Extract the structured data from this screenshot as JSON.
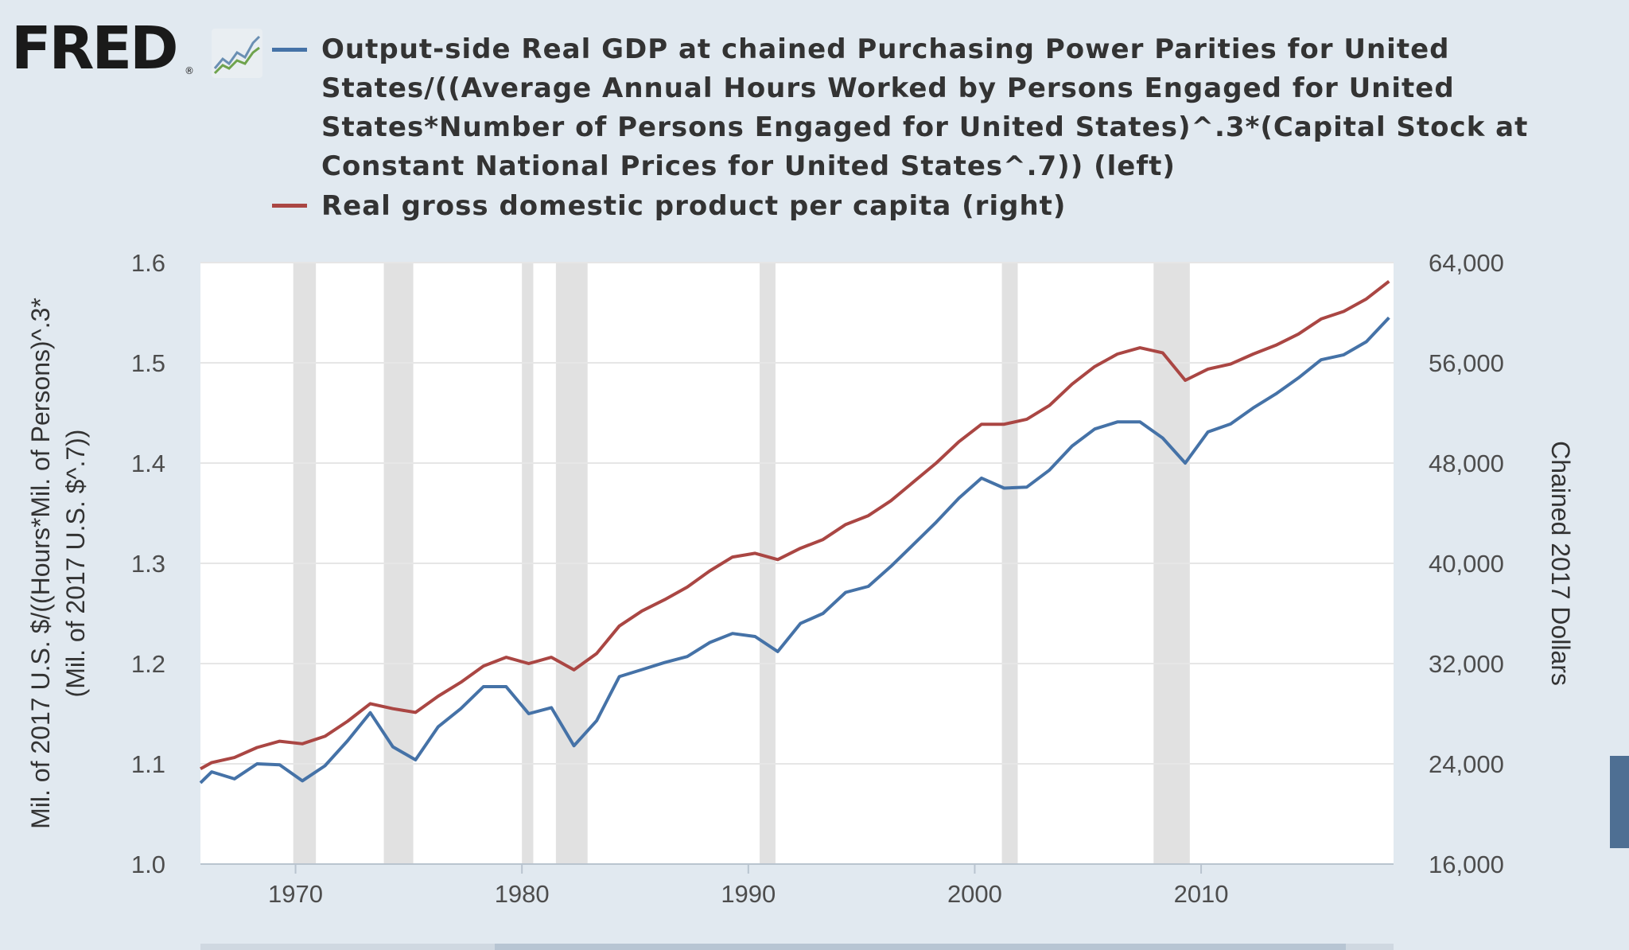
{
  "logo": {
    "wordmark": "FRED",
    "registered": "®",
    "badge_icon": "line-chart-icon"
  },
  "legend": [
    {
      "label": "Output-side Real GDP at chained Purchasing Power Parities for United States/((Average Annual Hours Worked by Persons Engaged for United States*Number of Persons Engaged for United States)^.3*(Capital Stock at Constant National Prices for United States^.7)) (left)",
      "color": "#4572a7"
    },
    {
      "label": "Real gross domestic product per capita (right)",
      "color": "#aa4643"
    }
  ],
  "chart_data": {
    "type": "line",
    "xlim": [
      1965.8,
      2018.5
    ],
    "x_ticks": [
      "1970",
      "1980",
      "1990",
      "2000",
      "2010"
    ],
    "left_axis": {
      "title_lines": [
        "Mil. of 2017 U.S. $/((Hours*Mil. of Persons)^.3*",
        "(Mil. of 2017 U.S. $^.7))"
      ],
      "ylim": [
        1.0,
        1.6
      ],
      "ticks": [
        "1.0",
        "1.1",
        "1.2",
        "1.3",
        "1.4",
        "1.5",
        "1.6"
      ]
    },
    "right_axis": {
      "title": "Chained 2017 Dollars",
      "ylim": [
        16000,
        64000
      ],
      "ticks": [
        "16,000",
        "24,000",
        "32,000",
        "40,000",
        "48,000",
        "56,000",
        "64,000"
      ]
    },
    "recessions": [
      [
        1969.9,
        1970.9
      ],
      [
        1973.9,
        1975.2
      ],
      [
        1980.0,
        1980.5
      ],
      [
        1981.5,
        1982.9
      ],
      [
        1990.5,
        1991.2
      ],
      [
        2001.2,
        2001.9
      ],
      [
        2007.9,
        2009.5
      ]
    ],
    "grid": true,
    "series": [
      {
        "name": "Output-side Real GDP at chained Purchasing Power Parities for United States/((Average Annual Hours Worked by Persons Engaged for United States*Number of Persons Engaged for United States)^.3*(Capital Stock at Constant National Prices for United States^.7)) (left)",
        "axis": "left",
        "color": "#4572a7",
        "x": [
          1965.8,
          1966.3,
          1967.3,
          1968.3,
          1969.3,
          1970.3,
          1971.3,
          1972.3,
          1973.3,
          1974.3,
          1975.3,
          1976.3,
          1977.3,
          1978.3,
          1979.3,
          1980.3,
          1981.3,
          1982.3,
          1983.3,
          1984.3,
          1985.3,
          1986.3,
          1987.3,
          1988.3,
          1989.3,
          1990.3,
          1991.3,
          1992.3,
          1993.3,
          1994.3,
          1995.3,
          1996.3,
          1997.3,
          1998.3,
          1999.3,
          2000.3,
          2001.3,
          2002.3,
          2003.3,
          2004.3,
          2005.3,
          2006.3,
          2007.3,
          2008.3,
          2009.3,
          2010.3,
          2011.3,
          2012.3,
          2013.3,
          2014.3,
          2015.3,
          2016.3,
          2017.3,
          2018.3
        ],
        "values": [
          1.081,
          1.092,
          1.085,
          1.1,
          1.099,
          1.083,
          1.098,
          1.123,
          1.151,
          1.117,
          1.104,
          1.137,
          1.155,
          1.177,
          1.177,
          1.15,
          1.156,
          1.118,
          1.143,
          1.187,
          1.194,
          1.201,
          1.207,
          1.221,
          1.23,
          1.227,
          1.212,
          1.24,
          1.25,
          1.271,
          1.277,
          1.297,
          1.319,
          1.341,
          1.365,
          1.385,
          1.375,
          1.376,
          1.393,
          1.417,
          1.434,
          1.441,
          1.441,
          1.425,
          1.4,
          1.431,
          1.439,
          1.455,
          1.469,
          1.485,
          1.503,
          1.508,
          1.521,
          1.545
        ]
      },
      {
        "name": "Real gross domestic product per capita (right)",
        "axis": "right",
        "color": "#aa4643",
        "x": [
          1965.8,
          1966.3,
          1967.3,
          1968.3,
          1969.3,
          1970.3,
          1971.3,
          1972.3,
          1973.3,
          1974.3,
          1975.3,
          1976.3,
          1977.3,
          1978.3,
          1979.3,
          1980.3,
          1981.3,
          1982.3,
          1983.3,
          1984.3,
          1985.3,
          1986.3,
          1987.3,
          1988.3,
          1989.3,
          1990.3,
          1991.3,
          1992.3,
          1993.3,
          1994.3,
          1995.3,
          1996.3,
          1997.3,
          1998.3,
          1999.3,
          2000.3,
          2001.3,
          2002.3,
          2003.3,
          2004.3,
          2005.3,
          2006.3,
          2007.3,
          2008.3,
          2009.3,
          2010.3,
          2011.3,
          2012.3,
          2013.3,
          2014.3,
          2015.3,
          2016.3,
          2017.3,
          2018.3
        ],
        "values": [
          23600,
          24100,
          24500,
          25300,
          25800,
          25600,
          26200,
          27400,
          28800,
          28400,
          28100,
          29400,
          30500,
          31800,
          32500,
          32000,
          32500,
          31500,
          32800,
          35000,
          36200,
          37100,
          38100,
          39400,
          40500,
          40800,
          40300,
          41200,
          41900,
          43100,
          43800,
          45000,
          46500,
          48000,
          49700,
          51100,
          51100,
          51500,
          52600,
          54300,
          55700,
          56700,
          57200,
          56800,
          54600,
          55500,
          55900,
          56700,
          57400,
          58300,
          59500,
          60100,
          61100,
          62500
        ]
      }
    ]
  }
}
